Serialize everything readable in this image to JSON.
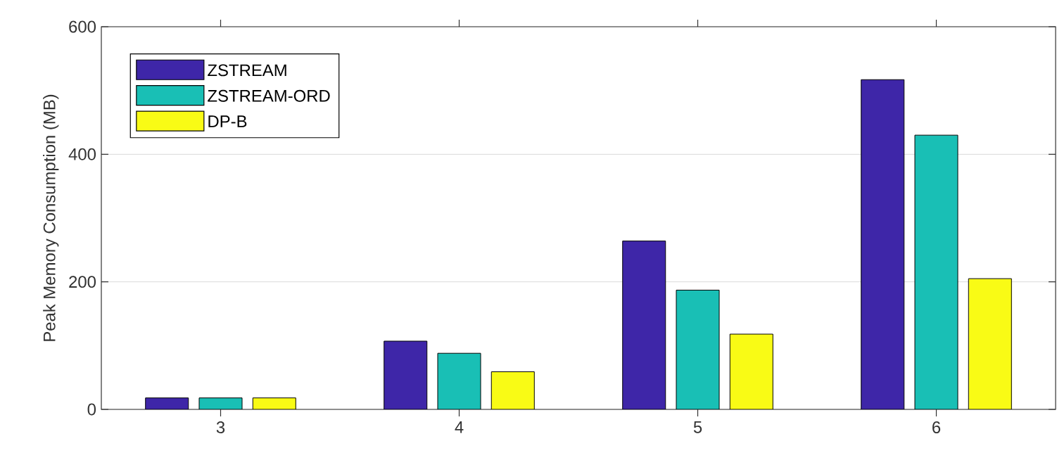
{
  "chart_data": {
    "type": "bar",
    "ylabel": "Peak Memory Consumption (MB)",
    "categories": [
      "3",
      "4",
      "5",
      "6"
    ],
    "series": [
      {
        "name": "ZSTREAM",
        "color": "#3e26a8",
        "values": [
          18,
          107,
          264,
          517
        ]
      },
      {
        "name": "ZSTREAM-ORD",
        "color": "#19bfb5",
        "values": [
          18,
          88,
          187,
          430
        ]
      },
      {
        "name": "DP-B",
        "color": "#f9fb15",
        "values": [
          18,
          59,
          118,
          205
        ]
      }
    ],
    "ylim": [
      0,
      600
    ],
    "yticks": [
      0,
      200,
      400,
      600
    ],
    "grid": "y",
    "legend": "top left"
  }
}
